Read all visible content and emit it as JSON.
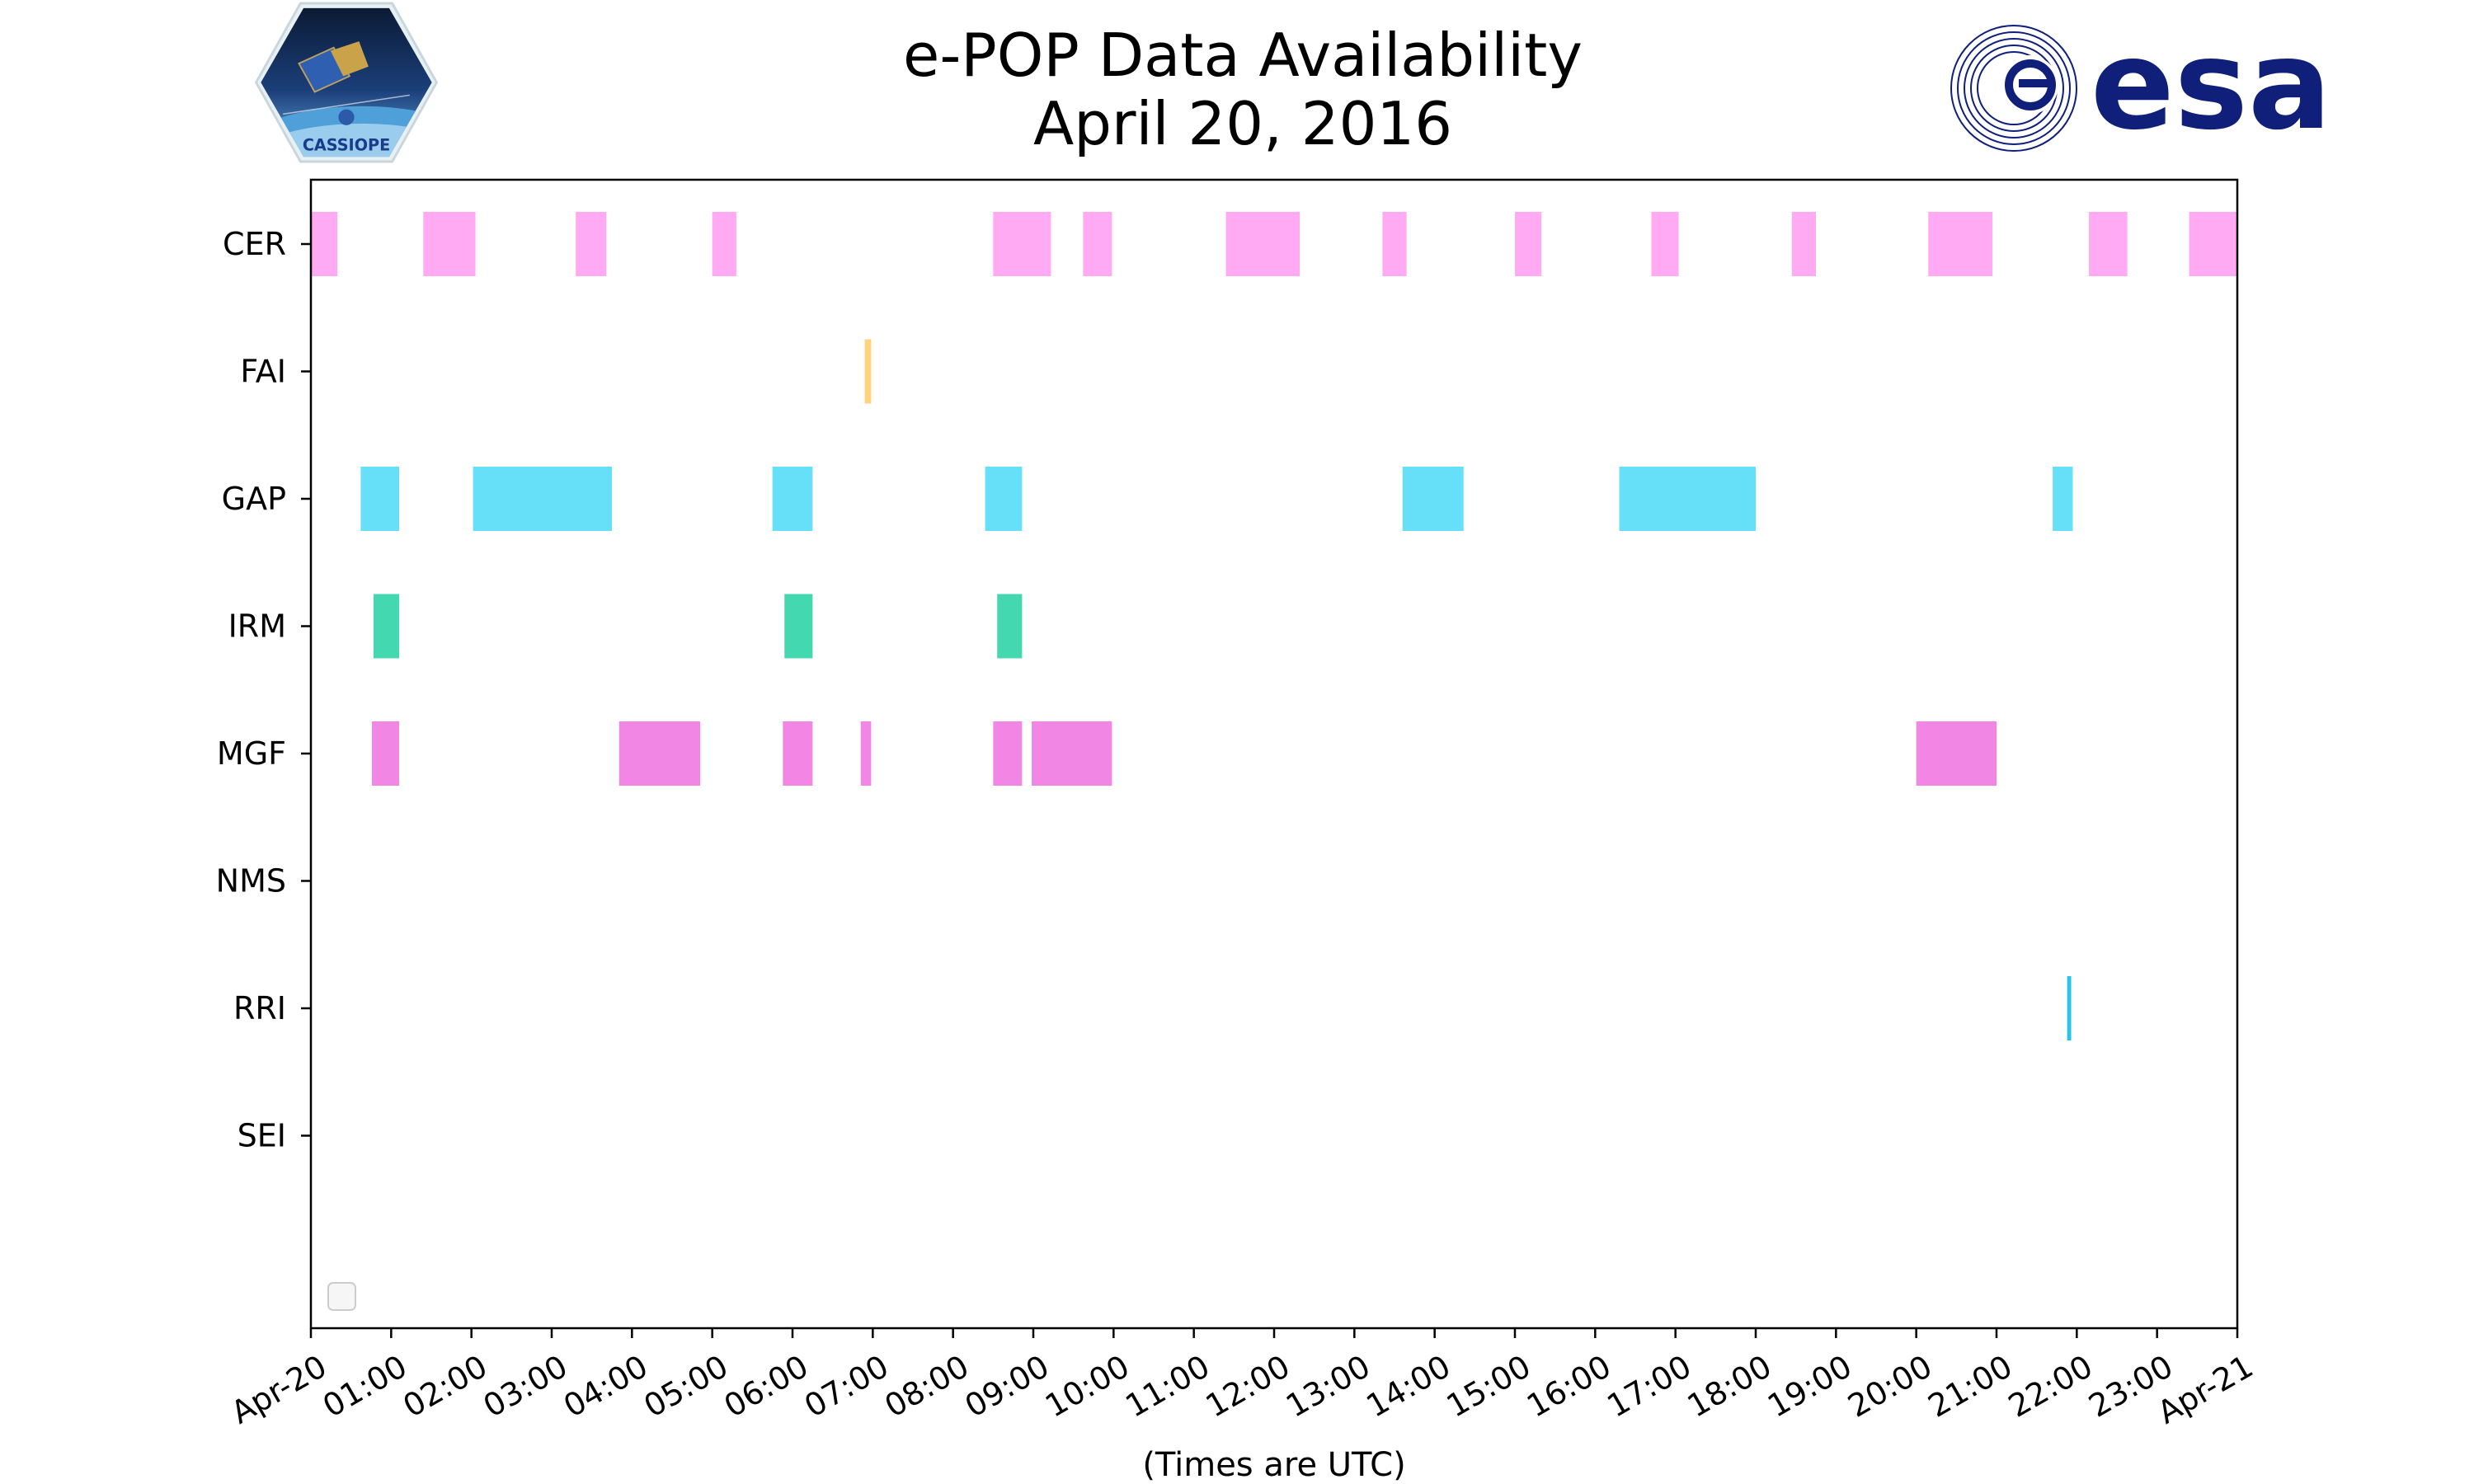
{
  "title": {
    "line1": "e-POP Data Availability",
    "line2": "April 20, 2016"
  },
  "logos": {
    "left_text": "CASSIOPE",
    "right_text": "esa"
  },
  "chart_data": {
    "type": "timeline",
    "title": "e-POP Data Availability April 20, 2016",
    "xlabel": "(Times are UTC)",
    "ylabel": "",
    "x_unit": "hours UTC",
    "xlim": [
      0,
      24
    ],
    "x_tick_labels": [
      "Apr-20",
      "01:00",
      "02:00",
      "03:00",
      "04:00",
      "05:00",
      "06:00",
      "07:00",
      "08:00",
      "09:00",
      "10:00",
      "11:00",
      "12:00",
      "13:00",
      "14:00",
      "15:00",
      "16:00",
      "17:00",
      "18:00",
      "19:00",
      "20:00",
      "21:00",
      "22:00",
      "23:00",
      "Apr-21"
    ],
    "categories": [
      "CER",
      "FAI",
      "GAP",
      "IRM",
      "MGF",
      "NMS",
      "RRI",
      "SEI"
    ],
    "grid": false,
    "legend": "bottom-left (empty)",
    "series": [
      {
        "name": "CER",
        "color": "#ffaaf2",
        "segments": [
          [
            0.0,
            0.33
          ],
          [
            1.4,
            2.05
          ],
          [
            3.3,
            3.68
          ],
          [
            5.0,
            5.3
          ],
          [
            8.5,
            9.22
          ],
          [
            9.62,
            9.98
          ],
          [
            11.4,
            12.32
          ],
          [
            13.35,
            13.65
          ],
          [
            15.0,
            15.33
          ],
          [
            16.7,
            17.04
          ],
          [
            18.45,
            18.75
          ],
          [
            20.15,
            20.95
          ],
          [
            22.15,
            22.63
          ],
          [
            23.4,
            24.0
          ]
        ]
      },
      {
        "name": "FAI",
        "color": "#ffd27f",
        "segments": [
          [
            6.9,
            6.98
          ]
        ]
      },
      {
        "name": "GAP",
        "color": "#66e0f8",
        "segments": [
          [
            0.62,
            1.1
          ],
          [
            2.02,
            3.75
          ],
          [
            5.75,
            6.25
          ],
          [
            8.4,
            8.86
          ],
          [
            13.6,
            14.36
          ],
          [
            16.3,
            18.0
          ],
          [
            21.7,
            21.95
          ]
        ]
      },
      {
        "name": "IRM",
        "color": "#44d8b0",
        "segments": [
          [
            0.78,
            1.1
          ],
          [
            5.9,
            6.25
          ],
          [
            8.55,
            8.86
          ]
        ]
      },
      {
        "name": "MGF",
        "color": "#f186e5",
        "segments": [
          [
            0.76,
            1.1
          ],
          [
            3.84,
            4.85
          ],
          [
            5.88,
            6.25
          ],
          [
            6.85,
            6.98
          ],
          [
            8.5,
            8.86
          ],
          [
            8.98,
            9.98
          ],
          [
            20.0,
            21.0
          ]
        ]
      },
      {
        "name": "NMS",
        "color": "#7777ff",
        "segments": []
      },
      {
        "name": "RRI",
        "color": "#2ac4e8",
        "segments": [
          [
            21.88,
            21.93
          ]
        ]
      },
      {
        "name": "SEI",
        "color": "#999999",
        "segments": []
      }
    ]
  }
}
